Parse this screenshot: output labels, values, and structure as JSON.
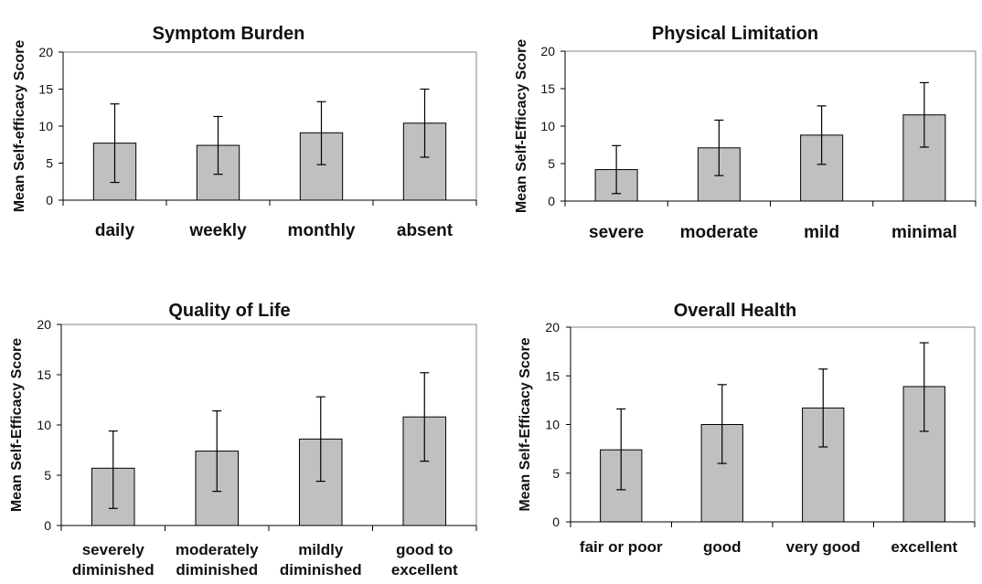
{
  "chart_data": [
    {
      "type": "bar",
      "title": "Symptom Burden",
      "ylabel": "Mean Self-efficacy Score",
      "ylim": [
        0,
        20
      ],
      "yticks": [
        0,
        5,
        10,
        15,
        20
      ],
      "categories": [
        [
          "daily"
        ],
        [
          "weekly"
        ],
        [
          "monthly"
        ],
        [
          "absent"
        ]
      ],
      "values": [
        7.7,
        7.4,
        9.1,
        10.4
      ],
      "error_low": [
        2.4,
        3.5,
        4.8,
        5.8
      ],
      "error_high": [
        13.0,
        11.3,
        13.3,
        15.0
      ],
      "grid": false,
      "legend": "none"
    },
    {
      "type": "bar",
      "title": "Physical Limitation",
      "ylabel": "Mean Self-Efficacy Score",
      "ylim": [
        0,
        20
      ],
      "yticks": [
        0,
        5,
        10,
        15,
        20
      ],
      "categories": [
        [
          "severe"
        ],
        [
          "moderate"
        ],
        [
          "mild"
        ],
        [
          "minimal"
        ]
      ],
      "values": [
        4.2,
        7.1,
        8.8,
        11.5
      ],
      "error_low": [
        1.0,
        3.4,
        4.9,
        7.2
      ],
      "error_high": [
        7.4,
        10.8,
        12.7,
        15.8
      ],
      "grid": false,
      "legend": "none"
    },
    {
      "type": "bar",
      "title": "Quality of Life",
      "ylabel": "Mean Self-Efficacy Score",
      "ylim": [
        0,
        20
      ],
      "yticks": [
        0,
        5,
        10,
        15,
        20
      ],
      "categories": [
        [
          "severely",
          "diminished"
        ],
        [
          "moderately",
          "diminished"
        ],
        [
          "mildly",
          "diminished"
        ],
        [
          "good to",
          "excellent"
        ]
      ],
      "values": [
        5.7,
        7.4,
        8.6,
        10.8
      ],
      "error_low": [
        1.7,
        3.4,
        4.4,
        6.4
      ],
      "error_high": [
        9.4,
        11.4,
        12.8,
        15.2
      ],
      "grid": false,
      "legend": "none"
    },
    {
      "type": "bar",
      "title": "Overall Health",
      "ylabel": "Mean Self-Efficacy Score",
      "ylim": [
        0,
        20
      ],
      "yticks": [
        0,
        5,
        10,
        15,
        20
      ],
      "categories": [
        [
          "fair or poor"
        ],
        [
          "good"
        ],
        [
          "very good"
        ],
        [
          "excellent"
        ]
      ],
      "values": [
        7.4,
        10.0,
        11.7,
        13.9
      ],
      "error_low": [
        3.3,
        6.0,
        7.7,
        9.3
      ],
      "error_high": [
        11.6,
        14.1,
        15.7,
        18.4
      ],
      "grid": false,
      "legend": "none"
    }
  ]
}
